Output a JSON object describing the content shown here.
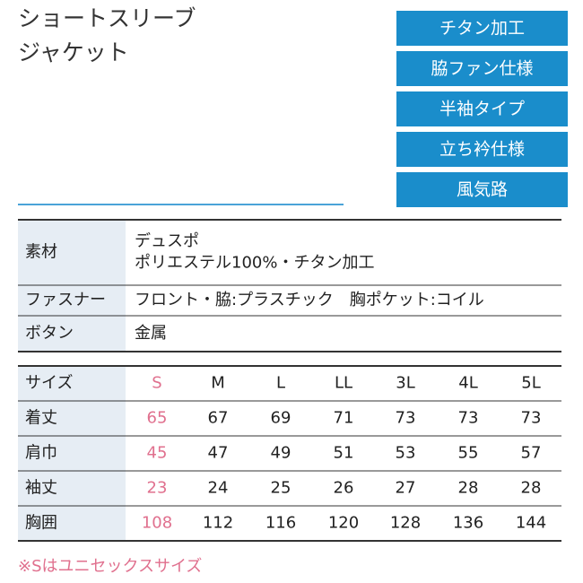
{
  "header": {
    "title_lines": [
      "ショートスリーブ",
      "ジャケット"
    ]
  },
  "badges": [
    "チタン加工",
    "脇ファン仕様",
    "半袖タイプ",
    "立ち衿仕様",
    "風気路"
  ],
  "spec_table": {
    "rows": [
      {
        "label": "素材",
        "lines": [
          "デュスポ",
          "ポリエステル100%・チタン加工"
        ]
      },
      {
        "label": "ファスナー",
        "lines": [
          "フロント・脇:プラスチック　胸ポケット:コイル"
        ]
      },
      {
        "label": "ボタン",
        "lines": [
          "金属"
        ]
      }
    ]
  },
  "size_table": {
    "header": [
      "サイズ",
      "S",
      "M",
      "L",
      "LL",
      "3L",
      "4L",
      "5L"
    ],
    "rows": [
      [
        "着丈",
        65,
        67,
        69,
        71,
        73,
        73,
        73
      ],
      [
        "肩巾",
        45,
        47,
        49,
        51,
        53,
        55,
        57
      ],
      [
        "袖丈",
        23,
        24,
        25,
        26,
        27,
        28,
        28
      ],
      [
        "胸囲",
        108,
        112,
        116,
        120,
        128,
        136,
        144
      ]
    ]
  },
  "footnote": "※Sはユニセックスサイズ"
}
